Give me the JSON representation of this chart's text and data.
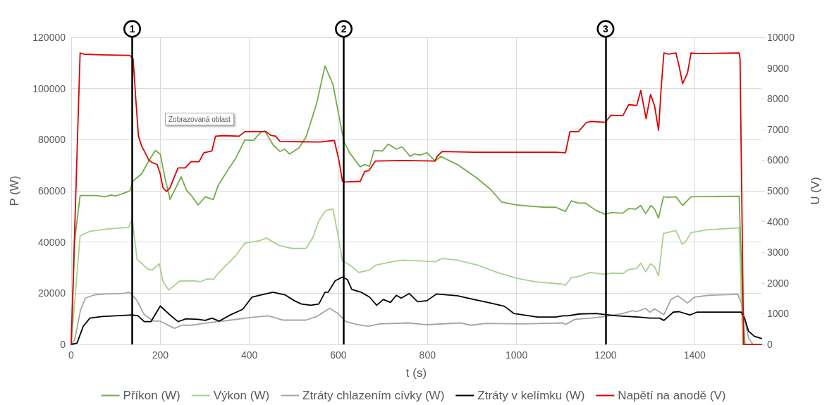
{
  "chart_data": {
    "type": "line",
    "xlabel": "t (s)",
    "ylabel": "P (W)",
    "y2label": "U (V)",
    "xlim": [
      0,
      1550
    ],
    "xticks": [
      0,
      200,
      400,
      600,
      800,
      1000,
      1200,
      1400
    ],
    "ylim": [
      0,
      120000
    ],
    "yticks": [
      0,
      20000,
      40000,
      60000,
      80000,
      100000,
      120000
    ],
    "y2lim": [
      0,
      10000
    ],
    "y2ticks": [
      0,
      1000,
      2000,
      3000,
      4000,
      5000,
      6000,
      7000,
      8000,
      9000,
      10000
    ],
    "grid": true,
    "legend": "bottom",
    "marker": "none",
    "line_style": "solid",
    "annotations": [
      "Zobrazovaná oblast",
      {
        "text": "1",
        "x": 137
      },
      {
        "text": "2",
        "x": 612
      },
      {
        "text": "3",
        "x": 1200
      }
    ],
    "ref_lines": [
      {
        "axis": "x",
        "value": 137,
        "color": "#000000"
      },
      {
        "axis": "x",
        "value": 612,
        "color": "#000000"
      },
      {
        "axis": "x",
        "value": 1200,
        "color": "#000000"
      }
    ],
    "series": [
      {
        "name": "Příkon (W)",
        "color": "#70ad47",
        "x": [
          0,
          8,
          20,
          58,
          74,
          90,
          100,
          121,
          132,
          139,
          158,
          174,
          189,
          200,
          211,
          222,
          232,
          247,
          259,
          269,
          285,
          301,
          319,
          330,
          353,
          369,
          390,
          409,
          427,
          435,
          453,
          469,
          480,
          490,
          511,
          527,
          543,
          551,
          570,
          588,
          599,
          612,
          625,
          649,
          659,
          670,
          680,
          699,
          712,
          730,
          743,
          761,
          770,
          783,
          799,
          817,
          830,
          867,
          909,
          941,
          967,
          999,
          1062,
          1088,
          1104,
          1110,
          1123,
          1139,
          1155,
          1178,
          1199,
          1212,
          1239,
          1252,
          1268,
          1279,
          1290,
          1302,
          1310,
          1319,
          1330,
          1341,
          1358,
          1373,
          1392,
          1500,
          1508,
          1513
        ],
        "values": [
          0,
          41000,
          58200,
          58200,
          57700,
          58400,
          58000,
          59300,
          60000,
          63900,
          66600,
          71700,
          75800,
          74400,
          64800,
          56700,
          60200,
          65500,
          60200,
          58400,
          54500,
          57700,
          56600,
          62100,
          68500,
          72600,
          79900,
          79700,
          83100,
          83400,
          78100,
          75400,
          76300,
          74400,
          76700,
          80900,
          89600,
          94100,
          108800,
          101500,
          91400,
          79500,
          74900,
          69400,
          70300,
          69600,
          75800,
          75600,
          78300,
          76300,
          77200,
          73500,
          74400,
          74000,
          74900,
          71700,
          73500,
          70300,
          65300,
          60700,
          55600,
          54500,
          53600,
          53600,
          52400,
          52000,
          56100,
          55200,
          55200,
          52400,
          50900,
          51500,
          51300,
          53100,
          52900,
          54300,
          51100,
          54300,
          52900,
          49400,
          57700,
          57500,
          57700,
          54300,
          57700,
          57900,
          13500,
          0
        ]
      },
      {
        "name": "Výkon (W)",
        "color": "#a9d18e",
        "x": [
          0,
          20,
          42,
          80,
          129,
          137,
          148,
          172,
          182,
          198,
          206,
          219,
          243,
          274,
          290,
          306,
          319,
          332,
          353,
          369,
          390,
          422,
          438,
          467,
          496,
          527,
          543,
          556,
          572,
          588,
          599,
          609,
          627,
          646,
          670,
          683,
          720,
          746,
          799,
          817,
          833,
          867,
          914,
          957,
          999,
          1041,
          1101,
          1110,
          1123,
          1139,
          1165,
          1199,
          1215,
          1239,
          1252,
          1270,
          1279,
          1290,
          1301,
          1310,
          1319,
          1330,
          1344,
          1358,
          1372,
          1381,
          1392,
          1431,
          1500,
          1508
        ],
        "values": [
          0,
          42400,
          44200,
          45100,
          45700,
          49200,
          33200,
          29500,
          29100,
          31500,
          24500,
          21300,
          24700,
          24900,
          24500,
          25600,
          25400,
          28100,
          31800,
          34600,
          39600,
          40500,
          41600,
          38700,
          37500,
          37500,
          41900,
          48300,
          52400,
          52900,
          42800,
          32700,
          30900,
          28100,
          29100,
          30900,
          32300,
          32900,
          32500,
          32300,
          33600,
          32900,
          30900,
          28100,
          25900,
          24500,
          23600,
          23100,
          26100,
          26500,
          28100,
          27400,
          27900,
          27700,
          29300,
          29700,
          31800,
          28400,
          31500,
          30400,
          26800,
          43300,
          43900,
          44500,
          39100,
          40500,
          43700,
          44800,
          45600,
          0
        ]
      },
      {
        "name": "Ztráty chlazením cívky (W)",
        "color": "#a5a5a5",
        "x": [
          0,
          8,
          21,
          32,
          53,
          77,
          116,
          131,
          148,
          164,
          185,
          200,
          232,
          248,
          269,
          306,
          358,
          401,
          443,
          475,
          527,
          551,
          580,
          599,
          617,
          641,
          667,
          693,
          756,
          799,
          873,
          899,
          930,
          1010,
          1104,
          1110,
          1131,
          1168,
          1199,
          1239,
          1260,
          1270,
          1289,
          1300,
          1310,
          1331,
          1347,
          1362,
          1384,
          1400,
          1431,
          1497,
          1505,
          1521,
          1531
        ],
        "values": [
          0,
          2000,
          13500,
          18100,
          19400,
          19700,
          19900,
          20400,
          17100,
          11600,
          9100,
          9100,
          6300,
          7500,
          7500,
          8400,
          9500,
          10500,
          11200,
          9500,
          9500,
          10900,
          14100,
          12100,
          8900,
          7800,
          7100,
          8000,
          8400,
          7700,
          8400,
          7500,
          8200,
          8000,
          8400,
          7800,
          9800,
          10300,
          10900,
          12100,
          13200,
          12800,
          14100,
          12600,
          13900,
          11600,
          17600,
          19000,
          16200,
          18500,
          19200,
          19600,
          16200,
          2500,
          0
        ]
      },
      {
        "name": "Ztráty v kelímku (W)",
        "color": "#000000",
        "x": [
          0,
          13,
          27,
          42,
          69,
          100,
          137,
          150,
          164,
          179,
          200,
          222,
          240,
          258,
          285,
          301,
          316,
          332,
          358,
          385,
          406,
          427,
          453,
          480,
          501,
          517,
          538,
          556,
          570,
          577,
          593,
          609,
          620,
          630,
          651,
          670,
          686,
          701,
          717,
          730,
          741,
          759,
          778,
          799,
          820,
          867,
          904,
          941,
          973,
          994,
          1047,
          1088,
          1104,
          1115,
          1141,
          1178,
          1226,
          1273,
          1300,
          1321,
          1331,
          1352,
          1365,
          1389,
          1405,
          1505,
          1513,
          1521,
          1534,
          1550
        ],
        "values": [
          0,
          500,
          7100,
          10300,
          10900,
          11200,
          11500,
          11200,
          8900,
          8900,
          15000,
          11500,
          8900,
          10000,
          9800,
          9400,
          10300,
          9100,
          11600,
          13700,
          18500,
          19400,
          20400,
          19400,
          17100,
          15800,
          15300,
          15800,
          20400,
          20400,
          24900,
          26300,
          25400,
          21500,
          20400,
          18500,
          15300,
          17600,
          16400,
          19200,
          18100,
          19900,
          16700,
          17100,
          19700,
          19000,
          17600,
          16200,
          14900,
          12100,
          10700,
          10700,
          11200,
          11200,
          11900,
          12100,
          11200,
          10700,
          10300,
          10300,
          9400,
          12600,
          12800,
          11500,
          12600,
          12600,
          9800,
          5200,
          3200,
          2300
        ]
      },
      {
        "name": "Napětí na anodě (V)",
        "color": "#dd0000",
        "axis": "y2",
        "x": [
          0,
          20,
          29,
          69,
          132,
          139,
          145,
          151,
          158,
          174,
          182,
          193,
          200,
          206,
          214,
          222,
          230,
          240,
          256,
          269,
          287,
          298,
          316,
          324,
          343,
          377,
          390,
          438,
          448,
          459,
          469,
          517,
          559,
          588,
          591,
          601,
          609,
          614,
          649,
          659,
          669,
          683,
          746,
          817,
          822,
          833,
          904,
          999,
          1089,
          1110,
          1120,
          1139,
          1157,
          1168,
          1199,
          1212,
          1239,
          1252,
          1270,
          1279,
          1291,
          1301,
          1310,
          1319,
          1325,
          1331,
          1341,
          1358,
          1365,
          1373,
          1384,
          1392,
          1405,
          1500,
          1502,
          1510,
          1550
        ],
        "values": [
          0,
          9490,
          9450,
          9430,
          9410,
          9300,
          8000,
          6780,
          6470,
          6010,
          5920,
          5860,
          5550,
          5100,
          4980,
          5100,
          5400,
          5750,
          5750,
          5950,
          5950,
          6240,
          6300,
          6780,
          6800,
          6780,
          6930,
          6930,
          6810,
          6780,
          6610,
          6600,
          6590,
          6640,
          6630,
          6010,
          5320,
          5290,
          5310,
          5630,
          5670,
          5970,
          5990,
          5970,
          6130,
          6280,
          6260,
          6260,
          6260,
          6240,
          6930,
          6930,
          7230,
          7260,
          7230,
          7460,
          7450,
          7810,
          7780,
          8270,
          7350,
          8140,
          7770,
          6970,
          8380,
          9490,
          9450,
          9490,
          9070,
          8490,
          8840,
          9490,
          9470,
          9490,
          9300,
          0,
          0
        ]
      }
    ]
  }
}
